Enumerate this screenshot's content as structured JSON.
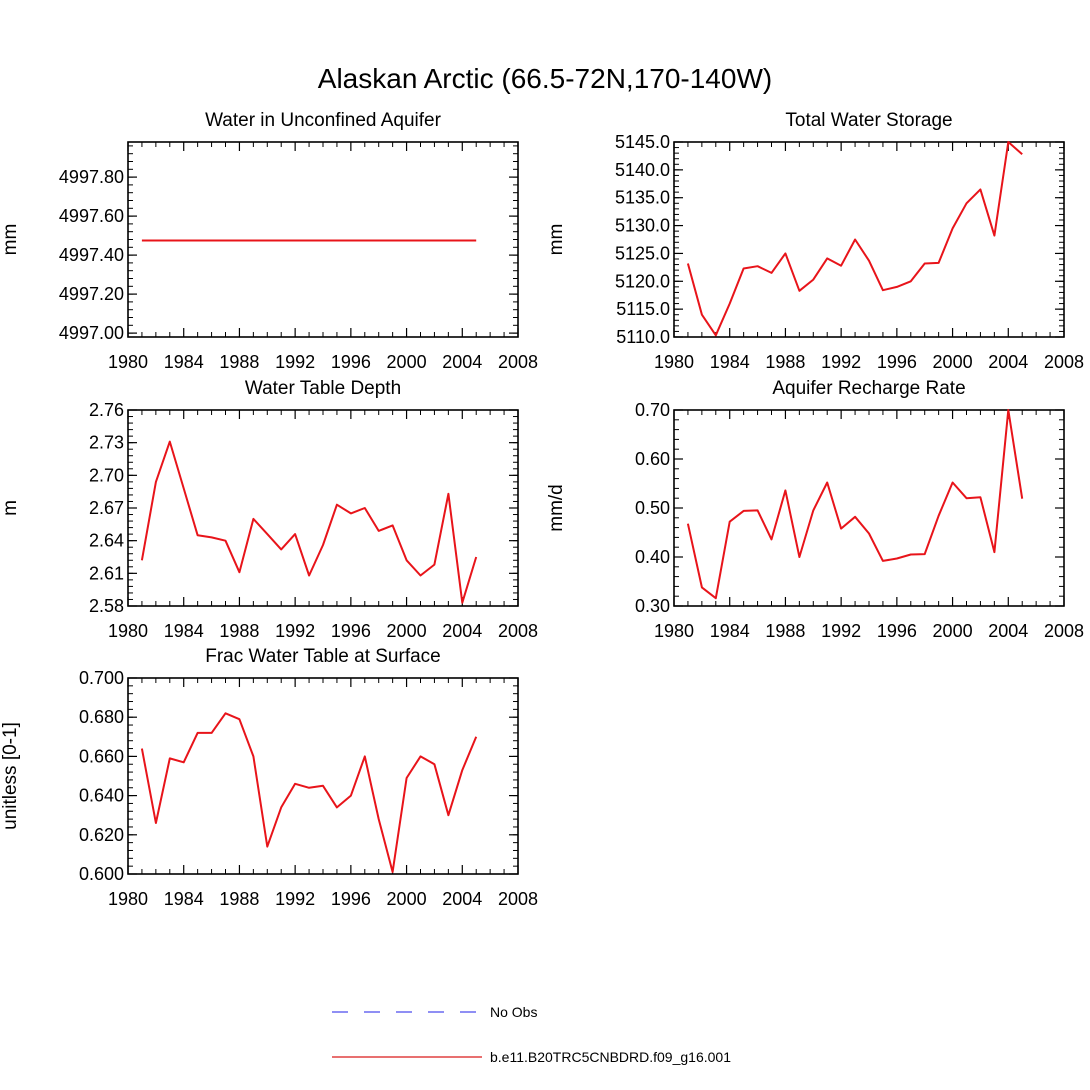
{
  "figure": {
    "title": "Alaskan Arctic (66.5-72N,170-140W)",
    "legend": {
      "placement": "bottom-center",
      "items": [
        {
          "label": "No Obs",
          "color": "#6a6af0",
          "style": "dashed"
        },
        {
          "label": "b.e11.B20TRC5CNBDRD.f09_g16.001",
          "color": "#e04040",
          "style": "solid"
        }
      ]
    }
  },
  "chart_data": [
    {
      "type": "line",
      "title": "Water in Unconfined Aquifer",
      "ylabel": "mm",
      "xlim": [
        1980,
        2008
      ],
      "ylim": [
        4996.98,
        4997.98
      ],
      "xticks": [
        1980,
        1984,
        1988,
        1992,
        1996,
        2000,
        2004,
        2008
      ],
      "xtick_labels": [
        "1980",
        "1984",
        "1988",
        "1992",
        "1996",
        "2000",
        "2004",
        "2008"
      ],
      "yticks": [
        4997.0,
        4997.2,
        4997.4,
        4997.6,
        4997.8
      ],
      "ytick_labels": [
        "4997.00",
        "4997.20",
        "4997.40",
        "4997.60",
        "4997.80"
      ],
      "series": [
        {
          "color": "#e8141a",
          "x": [
            1981,
            1982,
            1983,
            1984,
            1985,
            1986,
            1987,
            1988,
            1989,
            1990,
            1991,
            1992,
            1993,
            1994,
            1995,
            1996,
            1997,
            1998,
            1999,
            2000,
            2001,
            2002,
            2003,
            2004,
            2005
          ],
          "values": [
            4997.475,
            4997.475,
            4997.475,
            4997.475,
            4997.475,
            4997.475,
            4997.475,
            4997.475,
            4997.475,
            4997.475,
            4997.475,
            4997.475,
            4997.475,
            4997.475,
            4997.475,
            4997.475,
            4997.475,
            4997.475,
            4997.475,
            4997.475,
            4997.475,
            4997.475,
            4997.475,
            4997.475,
            4997.475
          ]
        }
      ]
    },
    {
      "type": "line",
      "title": "Total Water Storage",
      "ylabel": "mm",
      "xlim": [
        1980,
        2008
      ],
      "ylim": [
        5110,
        5145
      ],
      "xticks": [
        1980,
        1984,
        1988,
        1992,
        1996,
        2000,
        2004,
        2008
      ],
      "xtick_labels": [
        "1980",
        "1984",
        "1988",
        "1992",
        "1996",
        "2000",
        "2004",
        "2008"
      ],
      "yticks": [
        5110,
        5115,
        5120,
        5125,
        5130,
        5135,
        5140,
        5145
      ],
      "ytick_labels": [
        "5110.0",
        "5115.0",
        "5120.0",
        "5125.0",
        "5130.0",
        "5135.0",
        "5140.0",
        "5145.0"
      ],
      "series": [
        {
          "color": "#e8141a",
          "x": [
            1981,
            1982,
            1983,
            1984,
            1985,
            1986,
            1987,
            1988,
            1989,
            1990,
            1991,
            1992,
            1993,
            1994,
            1995,
            1996,
            1997,
            1998,
            1999,
            2000,
            2001,
            2002,
            2003,
            2004,
            2005
          ],
          "values": [
            5123.2,
            5114.0,
            5110.3,
            5116.0,
            5122.3,
            5122.7,
            5121.5,
            5125.0,
            5118.3,
            5120.3,
            5124.1,
            5122.8,
            5127.5,
            5123.7,
            5118.4,
            5119.0,
            5120.0,
            5123.2,
            5123.3,
            5129.5,
            5134.0,
            5136.5,
            5128.2,
            5145.0,
            5142.8
          ]
        }
      ]
    },
    {
      "type": "line",
      "title": "Water Table Depth",
      "ylabel": "m",
      "xlim": [
        1980,
        2008
      ],
      "ylim": [
        2.58,
        2.76
      ],
      "xticks": [
        1980,
        1984,
        1988,
        1992,
        1996,
        2000,
        2004,
        2008
      ],
      "xtick_labels": [
        "1980",
        "1984",
        "1988",
        "1992",
        "1996",
        "2000",
        "2004",
        "2008"
      ],
      "yticks": [
        2.58,
        2.61,
        2.64,
        2.67,
        2.7,
        2.73,
        2.76
      ],
      "ytick_labels": [
        "2.58",
        "2.61",
        "2.64",
        "2.67",
        "2.70",
        "2.73",
        "2.76"
      ],
      "series": [
        {
          "color": "#e8141a",
          "x": [
            1981,
            1982,
            1983,
            1984,
            1985,
            1986,
            1987,
            1988,
            1989,
            1990,
            1991,
            1992,
            1993,
            1994,
            1995,
            1996,
            1997,
            1998,
            1999,
            2000,
            2001,
            2002,
            2003,
            2004,
            2005
          ],
          "values": [
            2.622,
            2.694,
            2.731,
            2.688,
            2.645,
            2.643,
            2.64,
            2.611,
            2.66,
            2.646,
            2.632,
            2.646,
            2.608,
            2.636,
            2.673,
            2.665,
            2.67,
            2.649,
            2.654,
            2.622,
            2.608,
            2.618,
            2.683,
            2.583,
            2.625
          ]
        }
      ]
    },
    {
      "type": "line",
      "title": "Aquifer Recharge Rate",
      "ylabel": "mm/d",
      "xlim": [
        1980,
        2008
      ],
      "ylim": [
        0.3,
        0.7
      ],
      "xticks": [
        1980,
        1984,
        1988,
        1992,
        1996,
        2000,
        2004,
        2008
      ],
      "xtick_labels": [
        "1980",
        "1984",
        "1988",
        "1992",
        "1996",
        "2000",
        "2004",
        "2008"
      ],
      "yticks": [
        0.3,
        0.4,
        0.5,
        0.6,
        0.7
      ],
      "ytick_labels": [
        "0.30",
        "0.40",
        "0.50",
        "0.60",
        "0.70"
      ],
      "series": [
        {
          "color": "#e8141a",
          "x": [
            1981,
            1982,
            1983,
            1984,
            1985,
            1986,
            1987,
            1988,
            1989,
            1990,
            1991,
            1992,
            1993,
            1994,
            1995,
            1996,
            1997,
            1998,
            1999,
            2000,
            2001,
            2002,
            2003,
            2004,
            2005
          ],
          "values": [
            0.468,
            0.338,
            0.316,
            0.472,
            0.494,
            0.495,
            0.436,
            0.536,
            0.4,
            0.495,
            0.552,
            0.458,
            0.482,
            0.448,
            0.392,
            0.397,
            0.405,
            0.406,
            0.484,
            0.552,
            0.52,
            0.522,
            0.41,
            0.7,
            0.519
          ]
        }
      ]
    },
    {
      "type": "line",
      "title": "Frac Water Table at Surface",
      "ylabel": "unitless [0-1]",
      "xlim": [
        1980,
        2008
      ],
      "ylim": [
        0.6,
        0.7
      ],
      "xticks": [
        1980,
        1984,
        1988,
        1992,
        1996,
        2000,
        2004,
        2008
      ],
      "xtick_labels": [
        "1980",
        "1984",
        "1988",
        "1992",
        "1996",
        "2000",
        "2004",
        "2008"
      ],
      "yticks": [
        0.6,
        0.62,
        0.64,
        0.66,
        0.68,
        0.7
      ],
      "ytick_labels": [
        "0.600",
        "0.620",
        "0.640",
        "0.660",
        "0.680",
        "0.700"
      ],
      "series": [
        {
          "color": "#e8141a",
          "x": [
            1981,
            1982,
            1983,
            1984,
            1985,
            1986,
            1987,
            1988,
            1989,
            1990,
            1991,
            1992,
            1993,
            1994,
            1995,
            1996,
            1997,
            1998,
            1999,
            2000,
            2001,
            2002,
            2003,
            2004,
            2005
          ],
          "values": [
            0.664,
            0.626,
            0.659,
            0.657,
            0.672,
            0.672,
            0.682,
            0.679,
            0.66,
            0.614,
            0.634,
            0.646,
            0.644,
            0.645,
            0.634,
            0.64,
            0.66,
            0.628,
            0.601,
            0.649,
            0.66,
            0.656,
            0.63,
            0.653,
            0.67
          ]
        }
      ]
    }
  ]
}
